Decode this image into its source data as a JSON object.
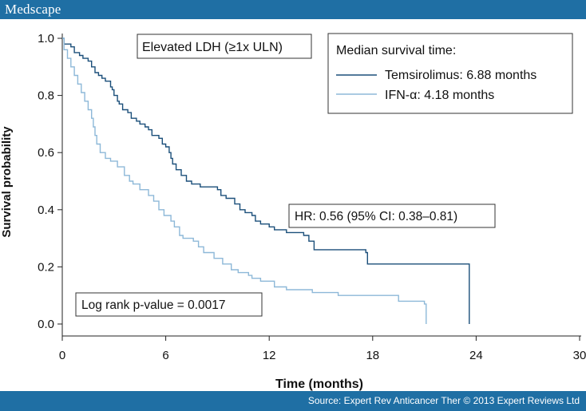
{
  "header": {
    "brand": "Medscape"
  },
  "footer": {
    "source": "Source: Expert Rev Anticancer Ther © 2013 Expert Reviews Ltd"
  },
  "colors": {
    "bar": "#1f6fa4",
    "temsirolimus": "#1b4f7a",
    "ifn": "#8db8d8",
    "axis": "#222222"
  },
  "chart_data": {
    "type": "line",
    "subtype": "kaplan-meier step",
    "xlabel": "Time (months)",
    "ylabel": "Survival probability",
    "xlim": [
      0,
      30
    ],
    "ylim": [
      0,
      1.0
    ],
    "xticks": [
      "0",
      "6",
      "12",
      "18",
      "24",
      "30"
    ],
    "yticks": [
      "0.0",
      "0.2",
      "0.4",
      "0.6",
      "0.8",
      "1.0"
    ],
    "subgroup_label": "Elevated LDH (≥1x ULN)",
    "legend": {
      "title": "Median survival time:",
      "position": "top-right",
      "entries": [
        "Temsirolimus: 6.88 months",
        "IFN-α: 4.18 months"
      ]
    },
    "annotations": {
      "hr": "HR: 0.56 (95% CI: 0.38–0.81)",
      "logrank": "Log rank p-value = 0.0017"
    },
    "series": [
      {
        "name": "Temsirolimus",
        "points": [
          [
            0,
            1.0
          ],
          [
            0.1,
            0.98
          ],
          [
            0.5,
            0.97
          ],
          [
            0.7,
            0.95
          ],
          [
            1.0,
            0.94
          ],
          [
            1.2,
            0.93
          ],
          [
            1.5,
            0.92
          ],
          [
            1.7,
            0.9
          ],
          [
            1.9,
            0.88
          ],
          [
            2.1,
            0.87
          ],
          [
            2.3,
            0.86
          ],
          [
            2.5,
            0.85
          ],
          [
            2.8,
            0.83
          ],
          [
            2.9,
            0.82
          ],
          [
            3.0,
            0.8
          ],
          [
            3.2,
            0.78
          ],
          [
            3.3,
            0.77
          ],
          [
            3.5,
            0.75
          ],
          [
            3.8,
            0.74
          ],
          [
            4.0,
            0.72
          ],
          [
            4.3,
            0.71
          ],
          [
            4.5,
            0.7
          ],
          [
            4.8,
            0.69
          ],
          [
            5.0,
            0.68
          ],
          [
            5.2,
            0.66
          ],
          [
            5.6,
            0.65
          ],
          [
            5.8,
            0.63
          ],
          [
            6.0,
            0.62
          ],
          [
            6.2,
            0.6
          ],
          [
            6.3,
            0.58
          ],
          [
            6.4,
            0.56
          ],
          [
            6.6,
            0.54
          ],
          [
            6.9,
            0.52
          ],
          [
            7.2,
            0.5
          ],
          [
            7.5,
            0.49
          ],
          [
            8.0,
            0.48
          ],
          [
            9.0,
            0.47
          ],
          [
            9.2,
            0.45
          ],
          [
            9.5,
            0.44
          ],
          [
            10.0,
            0.42
          ],
          [
            10.3,
            0.4
          ],
          [
            10.6,
            0.39
          ],
          [
            11.0,
            0.38
          ],
          [
            11.2,
            0.36
          ],
          [
            11.5,
            0.35
          ],
          [
            12.0,
            0.34
          ],
          [
            12.3,
            0.33
          ],
          [
            13.0,
            0.32
          ],
          [
            14.0,
            0.31
          ],
          [
            14.3,
            0.29
          ],
          [
            14.6,
            0.26
          ],
          [
            17.6,
            0.25
          ],
          [
            17.7,
            0.21
          ],
          [
            23.5,
            0.21
          ],
          [
            23.6,
            0.0
          ]
        ]
      },
      {
        "name": "IFN-α",
        "points": [
          [
            0,
            1.0
          ],
          [
            0.1,
            0.96
          ],
          [
            0.3,
            0.93
          ],
          [
            0.5,
            0.9
          ],
          [
            0.7,
            0.87
          ],
          [
            0.9,
            0.84
          ],
          [
            1.1,
            0.81
          ],
          [
            1.3,
            0.78
          ],
          [
            1.5,
            0.75
          ],
          [
            1.7,
            0.72
          ],
          [
            1.8,
            0.69
          ],
          [
            1.9,
            0.66
          ],
          [
            2.0,
            0.63
          ],
          [
            2.2,
            0.6
          ],
          [
            2.5,
            0.58
          ],
          [
            2.8,
            0.57
          ],
          [
            3.2,
            0.55
          ],
          [
            3.6,
            0.52
          ],
          [
            3.9,
            0.5
          ],
          [
            4.1,
            0.49
          ],
          [
            4.5,
            0.47
          ],
          [
            5.0,
            0.45
          ],
          [
            5.3,
            0.43
          ],
          [
            5.6,
            0.4
          ],
          [
            5.9,
            0.38
          ],
          [
            6.3,
            0.36
          ],
          [
            6.5,
            0.34
          ],
          [
            6.8,
            0.31
          ],
          [
            7.0,
            0.3
          ],
          [
            7.6,
            0.29
          ],
          [
            7.9,
            0.27
          ],
          [
            8.2,
            0.25
          ],
          [
            8.8,
            0.23
          ],
          [
            9.3,
            0.21
          ],
          [
            9.8,
            0.19
          ],
          [
            10.2,
            0.18
          ],
          [
            10.8,
            0.17
          ],
          [
            11.0,
            0.16
          ],
          [
            11.5,
            0.15
          ],
          [
            12.3,
            0.13
          ],
          [
            13.0,
            0.12
          ],
          [
            14.5,
            0.11
          ],
          [
            16.0,
            0.1
          ],
          [
            19.5,
            0.08
          ],
          [
            21.0,
            0.07
          ],
          [
            21.1,
            0.0
          ]
        ]
      }
    ]
  }
}
